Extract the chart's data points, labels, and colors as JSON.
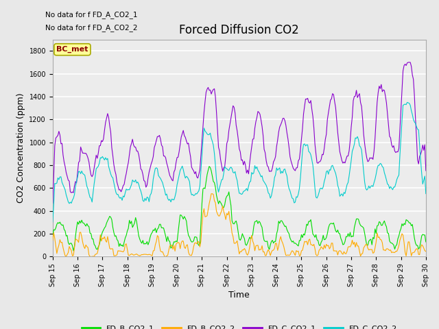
{
  "title": "Forced Diffusion CO2",
  "xlabel": "Time",
  "ylabel": "CO2 Concentration (ppm)",
  "ylim": [
    0,
    1900
  ],
  "xlim": [
    0,
    360
  ],
  "x_tick_labels": [
    "Sep 15",
    "Sep 16",
    "Sep 17",
    "Sep 18",
    "Sep 19",
    "Sep 20",
    "Sep 21",
    "Sep 22",
    "Sep 23",
    "Sep 24",
    "Sep 25",
    "Sep 26",
    "Sep 27",
    "Sep 28",
    "Sep 29",
    "Sep 30"
  ],
  "x_tick_positions": [
    0,
    24,
    48,
    72,
    96,
    120,
    144,
    168,
    192,
    216,
    240,
    264,
    288,
    312,
    336,
    360
  ],
  "colors": {
    "FD_B_CO2_1": "#00dd00",
    "FD_B_CO2_2": "#ffaa00",
    "FD_C_CO2_1": "#8800cc",
    "FD_C_CO2_2": "#00cccc"
  },
  "nodata_text1": "No data for f FD_A_CO2_1",
  "nodata_text2": "No data for f FD_A_CO2_2",
  "bcmet_label": "BC_met",
  "background_color": "#e8e8e8",
  "plot_bg_color": "#ececec",
  "title_fontsize": 12,
  "axis_fontsize": 9,
  "tick_fontsize": 7,
  "legend_labels": [
    "FD_B_CO2_1",
    "FD_B_CO2_2",
    "FD_C_CO2_1",
    "FD_C_CO2_2"
  ],
  "grid_color": "#ffffff",
  "linewidth": 0.8
}
